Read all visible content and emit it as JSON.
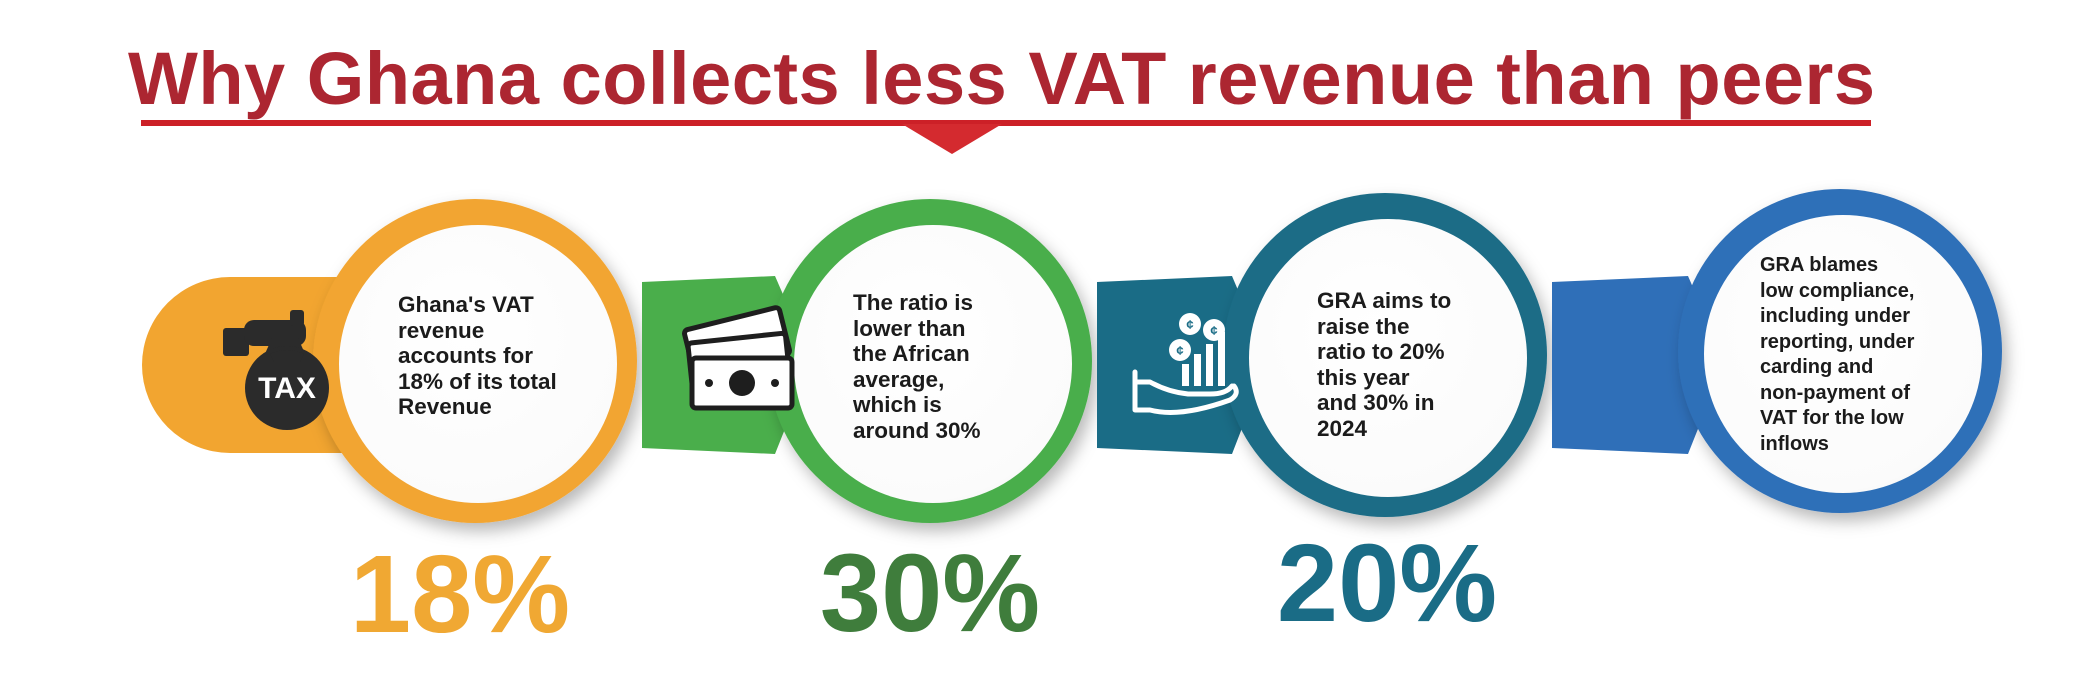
{
  "title": "Why Ghana collects less VAT revenue than peers",
  "colors": {
    "title": "#ac2631",
    "underline": "#cc2027",
    "orange": "#f2a530",
    "green": "#4aae4b",
    "teal": "#1a6c86",
    "blue": "#2f6fb8"
  },
  "steps": [
    {
      "icon": "tax-bag-icon",
      "icon_label": "TAX",
      "text": "Ghana's VAT\nrevenue\naccounts for\n18% of its total\nRevenue",
      "value": "18%"
    },
    {
      "icon": "banknotes-icon",
      "text": "The ratio is\nlower than\nthe African\naverage,\nwhich is\naround 30%",
      "value": "30%"
    },
    {
      "icon": "hand-coins-chart-icon",
      "text": "GRA aims to\nraise the\nratio to 20%\nthis year\nand 30% in\n2024",
      "value": "20%"
    },
    {
      "icon": "",
      "text": "GRA blames\nlow compliance,\nincluding under\nreporting, under\ncarding and\nnon-payment of\nVAT for the low\ninflows",
      "value": ""
    }
  ]
}
